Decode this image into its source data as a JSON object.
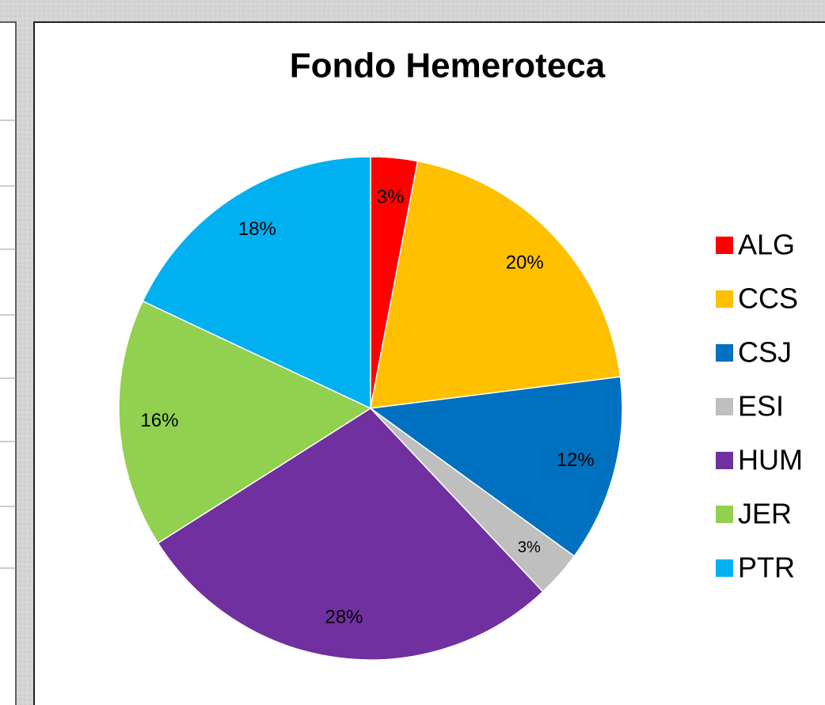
{
  "chart_data": {
    "type": "pie",
    "title": "Fondo Hemeroteca",
    "categories": [
      "ALG",
      "CCS",
      "CSJ",
      "ESI",
      "HUM",
      "JER",
      "PTR"
    ],
    "values": [
      3,
      20,
      12,
      3,
      28,
      16,
      18
    ],
    "value_labels": [
      "3%",
      "20%",
      "12%",
      "3%",
      "28%",
      "16%",
      "18%"
    ],
    "colors": [
      "#ff0000",
      "#ffc000",
      "#0070c0",
      "#bfbfbf",
      "#7030a0",
      "#92d050",
      "#00b0f0"
    ],
    "legend": "right"
  }
}
